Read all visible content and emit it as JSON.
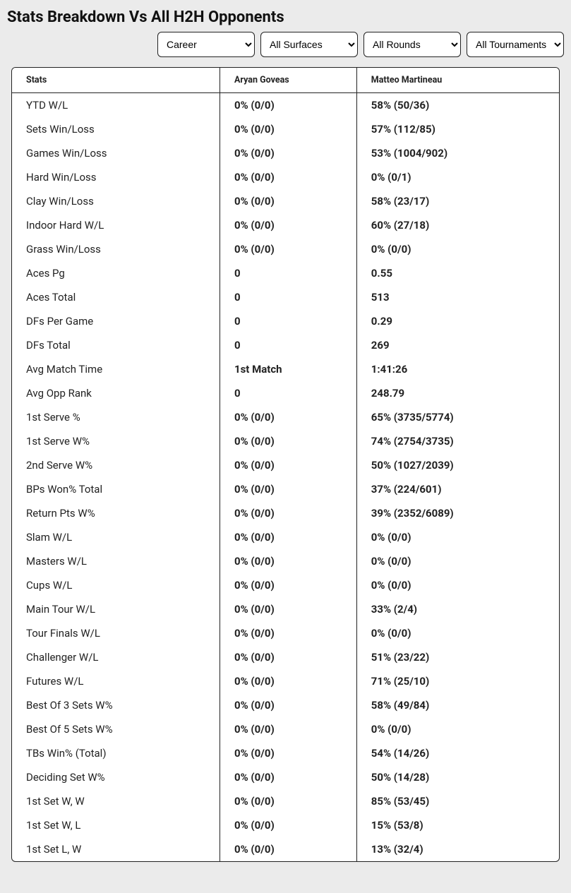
{
  "title": "Stats Breakdown Vs All H2H Opponents",
  "filters": {
    "period": {
      "selected": "Career"
    },
    "surface": {
      "selected": "All Surfaces"
    },
    "round": {
      "selected": "All Rounds"
    },
    "tournament": {
      "selected": "All Tournaments"
    }
  },
  "table": {
    "columns": [
      "Stats",
      "Aryan Goveas",
      "Matteo Martineau"
    ],
    "rows": [
      [
        "YTD W/L",
        "0% (0/0)",
        "58% (50/36)"
      ],
      [
        "Sets Win/Loss",
        "0% (0/0)",
        "57% (112/85)"
      ],
      [
        "Games Win/Loss",
        "0% (0/0)",
        "53% (1004/902)"
      ],
      [
        "Hard Win/Loss",
        "0% (0/0)",
        "0% (0/1)"
      ],
      [
        "Clay Win/Loss",
        "0% (0/0)",
        "58% (23/17)"
      ],
      [
        "Indoor Hard W/L",
        "0% (0/0)",
        "60% (27/18)"
      ],
      [
        "Grass Win/Loss",
        "0% (0/0)",
        "0% (0/0)"
      ],
      [
        "Aces Pg",
        "0",
        "0.55"
      ],
      [
        "Aces Total",
        "0",
        "513"
      ],
      [
        "DFs Per Game",
        "0",
        "0.29"
      ],
      [
        "DFs Total",
        "0",
        "269"
      ],
      [
        "Avg Match Time",
        "1st Match",
        "1:41:26"
      ],
      [
        "Avg Opp Rank",
        "0",
        "248.79"
      ],
      [
        "1st Serve %",
        "0% (0/0)",
        "65% (3735/5774)"
      ],
      [
        "1st Serve W%",
        "0% (0/0)",
        "74% (2754/3735)"
      ],
      [
        "2nd Serve W%",
        "0% (0/0)",
        "50% (1027/2039)"
      ],
      [
        "BPs Won% Total",
        "0% (0/0)",
        "37% (224/601)"
      ],
      [
        "Return Pts W%",
        "0% (0/0)",
        "39% (2352/6089)"
      ],
      [
        "Slam W/L",
        "0% (0/0)",
        "0% (0/0)"
      ],
      [
        "Masters W/L",
        "0% (0/0)",
        "0% (0/0)"
      ],
      [
        "Cups W/L",
        "0% (0/0)",
        "0% (0/0)"
      ],
      [
        "Main Tour W/L",
        "0% (0/0)",
        "33% (2/4)"
      ],
      [
        "Tour Finals W/L",
        "0% (0/0)",
        "0% (0/0)"
      ],
      [
        "Challenger W/L",
        "0% (0/0)",
        "51% (23/22)"
      ],
      [
        "Futures W/L",
        "0% (0/0)",
        "71% (25/10)"
      ],
      [
        "Best Of 3 Sets W%",
        "0% (0/0)",
        "58% (49/84)"
      ],
      [
        "Best Of 5 Sets W%",
        "0% (0/0)",
        "0% (0/0)"
      ],
      [
        "TBs Win% (Total)",
        "0% (0/0)",
        "54% (14/26)"
      ],
      [
        "Deciding Set W%",
        "0% (0/0)",
        "50% (14/28)"
      ],
      [
        "1st Set W, W",
        "0% (0/0)",
        "85% (53/45)"
      ],
      [
        "1st Set W, L",
        "0% (0/0)",
        "15% (53/8)"
      ],
      [
        "1st Set L, W",
        "0% (0/0)",
        "13% (32/4)"
      ]
    ]
  },
  "colors": {
    "page_bg": "#ebebeb",
    "card_bg": "#ffffff",
    "border": "#222222",
    "text": "#222222"
  }
}
